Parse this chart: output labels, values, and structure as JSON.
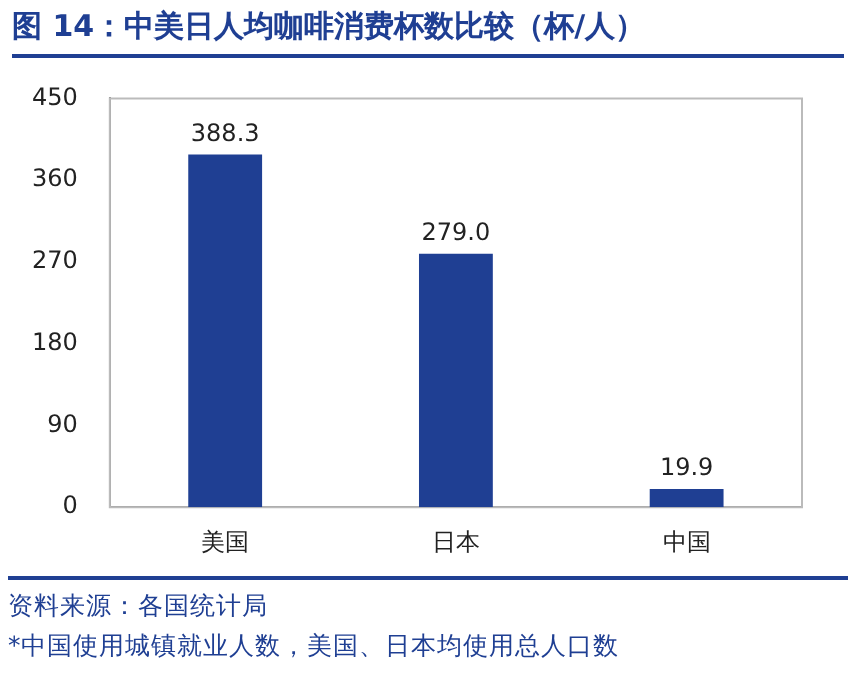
{
  "chart_data": {
    "type": "bar",
    "title": "图 14：中美日人均咖啡消费杯数比较（杯/人）",
    "categories": [
      "美国",
      "日本",
      "中国"
    ],
    "values": [
      388.3,
      279.0,
      19.9
    ],
    "value_labels": [
      "388.3",
      "279.0",
      "19.9"
    ],
    "color": "#1f3f93",
    "ylim": [
      0,
      450
    ],
    "yticks": [
      0,
      90,
      180,
      270,
      360,
      450
    ],
    "grid": false,
    "legend": false,
    "annotations": [
      "资料来源：各国统计局",
      "*中国使用城镇就业人数，美国、日本均使用总人口数"
    ]
  }
}
